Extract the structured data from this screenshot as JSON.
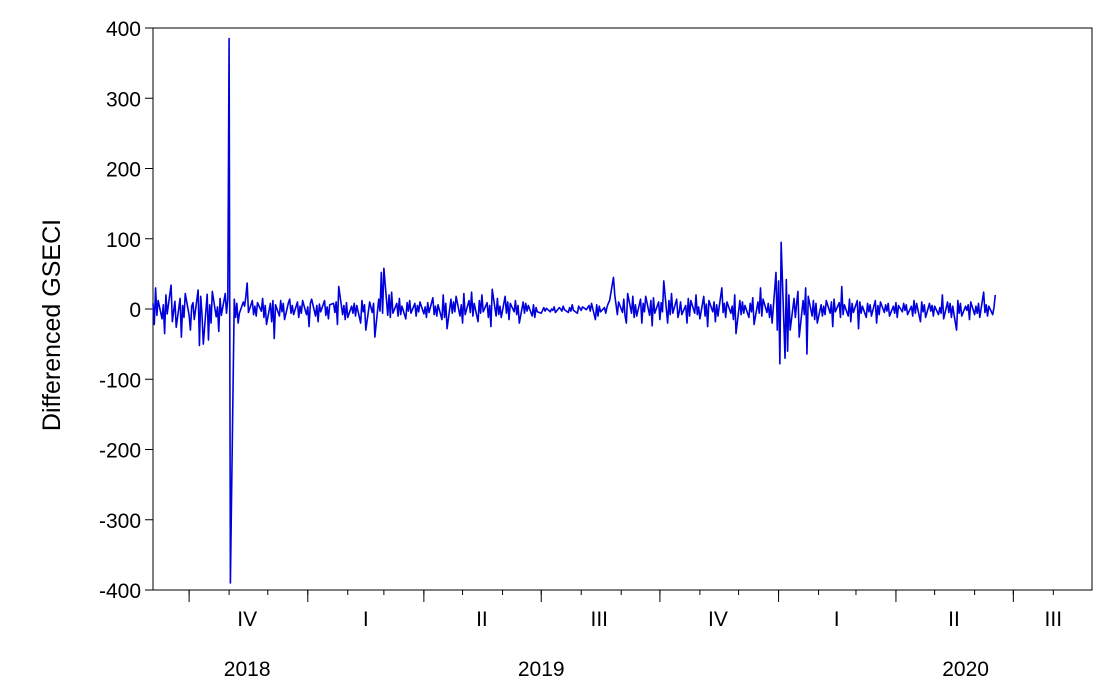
{
  "chart_data": {
    "type": "line",
    "title": "",
    "xlabel": "",
    "ylabel": "Differenced GSECI",
    "ylim": [
      -400,
      400
    ],
    "yticks": [
      400,
      300,
      200,
      100,
      0,
      -100,
      -200,
      -300,
      -400
    ],
    "ytick_labels": [
      "400",
      "300",
      "200",
      "100",
      "0",
      "-100",
      "-200",
      "-300",
      "-400"
    ],
    "x_range": [
      "2018-09-03",
      "2020-08-31"
    ],
    "quarter_boundaries": [
      "2018-10-01",
      "2019-01-01",
      "2019-04-01",
      "2019-07-01",
      "2019-10-01",
      "2020-01-01",
      "2020-04-01",
      "2020-07-01"
    ],
    "quarter_labels": [
      {
        "label": "IV",
        "center": "2018-11-15"
      },
      {
        "label": "I",
        "center": "2019-02-15"
      },
      {
        "label": "II",
        "center": "2019-05-16"
      },
      {
        "label": "III",
        "center": "2019-08-15"
      },
      {
        "label": "IV",
        "center": "2019-11-15"
      },
      {
        "label": "I",
        "center": "2020-02-15"
      },
      {
        "label": "II",
        "center": "2020-05-16"
      },
      {
        "label": "III",
        "center": "2020-08-01"
      }
    ],
    "year_labels": [
      {
        "label": "2018",
        "center": "2018-11-15"
      },
      {
        "label": "2019",
        "center": "2019-07-01"
      },
      {
        "label": "2020",
        "center": "2020-05-25"
      }
    ],
    "grid": false,
    "legend": "none",
    "line_color": "#0000DD",
    "series": [
      {
        "x_start": "2018-09-03",
        "step_days": 1,
        "weekdays_only": true,
        "values": [
          8,
          -22,
          30,
          -9,
          12,
          -14,
          6,
          -35,
          20,
          -7,
          34,
          -18,
          -3,
          11,
          -26,
          15,
          -40,
          5,
          -12,
          22,
          -9,
          -30,
          4,
          9,
          -15,
          27,
          -52,
          18,
          -8,
          -50,
          21,
          -44,
          6,
          -20,
          25,
          -11,
          3,
          -32,
          15,
          -9,
          22,
          -6,
          14,
          385,
          -390,
          14,
          -12,
          8,
          -20,
          -6,
          10,
          4,
          18,
          37,
          -5,
          12,
          -8,
          4,
          -10,
          9,
          -3,
          15,
          -12,
          5,
          -22,
          8,
          -18,
          12,
          -42,
          6,
          -10,
          12,
          -4,
          8,
          -15,
          9,
          14,
          -6,
          5,
          -8,
          10,
          -12,
          4,
          -6,
          12,
          -8,
          3,
          -25,
          8,
          14,
          -10,
          5,
          -18,
          7,
          -4,
          12,
          -9,
          3,
          -14,
          6,
          8,
          -5,
          10,
          -22,
          32,
          -8,
          5,
          -15,
          9,
          -12,
          4,
          -6,
          8,
          -10,
          5,
          -20,
          12,
          -4,
          6,
          -30,
          10,
          2,
          -5,
          8,
          -40,
          14,
          -3,
          52,
          -6,
          58,
          -9,
          20,
          -12,
          24,
          -6,
          8,
          -10,
          15,
          -8,
          4,
          -14,
          9,
          -3,
          12,
          -6,
          8,
          -10,
          5,
          -4,
          10,
          -7,
          3,
          -12,
          9,
          -5,
          16,
          -8,
          4,
          -10,
          6,
          -15,
          20,
          -12,
          8,
          -28,
          14,
          -6,
          10,
          -4,
          18,
          -10,
          6,
          -20,
          22,
          -8,
          12,
          -5,
          24,
          -10,
          8,
          -18,
          12,
          -6,
          20,
          -4,
          9,
          -12,
          5,
          -25,
          28,
          -10,
          15,
          -8,
          4,
          -12,
          18,
          -6,
          10,
          -15,
          8,
          -4,
          12,
          -8,
          5,
          -20,
          10,
          -6,
          8,
          -3,
          5,
          -10,
          6,
          -12,
          2,
          -4,
          -6,
          -2,
          2,
          -3,
          1,
          -4,
          0,
          -2,
          3,
          -5,
          2,
          0,
          -3,
          4,
          -1,
          -5,
          2,
          -3,
          6,
          -2,
          -6,
          4,
          1,
          -2,
          3,
          -1,
          2,
          5,
          -3,
          8,
          -15,
          6,
          -10,
          4,
          -4,
          2,
          -6,
          3,
          8,
          12,
          45,
          20,
          6,
          -8,
          10,
          -5,
          14,
          -10,
          -20,
          22,
          -6,
          18,
          -12,
          6,
          -10,
          14,
          -20,
          8,
          -4,
          18,
          -9,
          12,
          -24,
          16,
          -6,
          10,
          -15,
          9,
          -4,
          40,
          -20,
          12,
          -8,
          22,
          -6,
          14,
          -12,
          -4,
          10,
          -8,
          5,
          -20,
          15,
          -10,
          12,
          -6,
          20,
          -8,
          3,
          -14,
          18,
          -10,
          7,
          -25,
          12,
          -4,
          10,
          -18,
          6,
          -10,
          30,
          -5,
          8,
          -12,
          10,
          -6,
          4,
          -15,
          20,
          -35,
          12,
          -8,
          10,
          -6,
          5,
          -12,
          8,
          -4,
          16,
          -22,
          10,
          -6,
          30,
          -10,
          14,
          -5,
          8,
          -12,
          6,
          -20,
          52,
          -30,
          40,
          -78,
          95,
          -70,
          42,
          -60,
          20,
          -30,
          15,
          -12,
          8,
          25,
          -40,
          12,
          -8,
          30,
          -64,
          18,
          -10,
          12,
          -15,
          8,
          -20,
          6,
          -10,
          4,
          -8,
          12,
          -6,
          10,
          -25,
          14,
          -4,
          9,
          -12,
          32,
          -8,
          6,
          -10,
          14,
          -18,
          8,
          -5,
          12,
          -28,
          10,
          -6,
          4,
          -12,
          8,
          -4,
          6,
          -10,
          12,
          -20,
          5,
          -8,
          10,
          -5,
          6,
          -3,
          8,
          -10,
          4,
          -6,
          9,
          -12,
          5,
          -4,
          8,
          -2,
          6,
          -8,
          4,
          -10,
          12,
          -6,
          8,
          -18,
          10,
          -4,
          6,
          -12,
          8,
          -3,
          5,
          -10,
          4,
          -8,
          2,
          -6,
          20,
          -14,
          10,
          -5,
          8,
          -12,
          4,
          -30,
          12,
          -6,
          8,
          -10,
          4,
          -2,
          6,
          -15,
          10,
          -8,
          4,
          -6,
          8,
          -12,
          24,
          -5,
          6,
          -10,
          4,
          -8,
          2,
          20
        ]
      }
    ]
  }
}
